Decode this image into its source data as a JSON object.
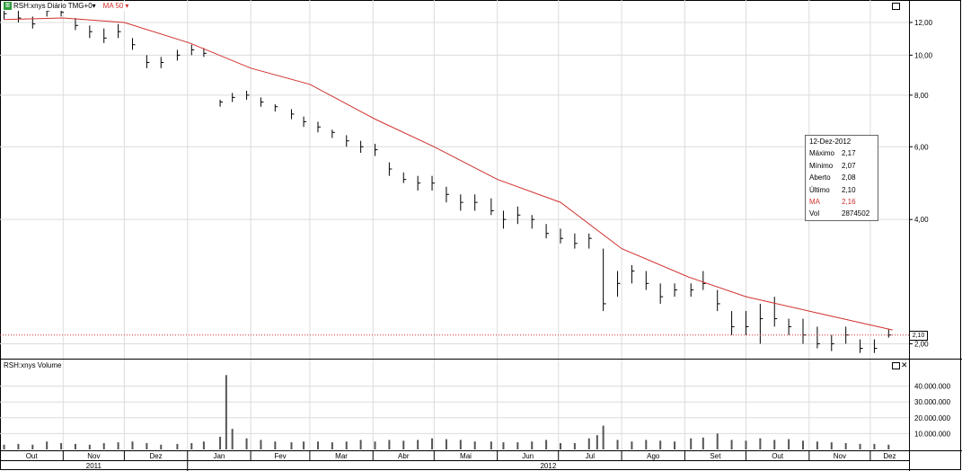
{
  "header": {
    "symbol_label": "RSH:xnys Diário TMG+0",
    "ma_label": "MA 50",
    "ma_arrow": "▾",
    "dropdown_arrow": "▾",
    "icon": "chart-icon"
  },
  "volume_panel": {
    "title": "RSH:xnys Volume"
  },
  "tooltip": {
    "date": "12-Dez-2012",
    "rows": [
      {
        "label": "Máximo",
        "value": "2,17"
      },
      {
        "label": "Mínimo",
        "value": "2,07"
      },
      {
        "label": "Aberto",
        "value": "2,08"
      },
      {
        "label": "Último",
        "value": "2,10"
      },
      {
        "label": "MA",
        "value": "2,16"
      },
      {
        "label": "Vol",
        "value": "2874502"
      }
    ]
  },
  "last_price_label": "2,10",
  "colors": {
    "ma_line": "#d0312d",
    "candle": "#000000",
    "volume": "#555555",
    "grid": "#dcdcdc",
    "last_line": "#d0312d"
  },
  "chart_data": [
    {
      "type": "candlestick-line",
      "title": "RSH:xnys Diário TMG+0",
      "y_scale": "log",
      "ylim": [
        1.85,
        13.6
      ],
      "y_ticks": [
        "2,00",
        "4,00",
        "6,00",
        "8,00",
        "10,00",
        "12,00"
      ],
      "y_tick_values": [
        2,
        4,
        6,
        8,
        10,
        12
      ],
      "x_month_labels": [
        "Out",
        "Nov",
        "Dez",
        "Jan",
        "Fev",
        "Mar",
        "Abr",
        "Mai",
        "Jun",
        "Jul",
        "Ago",
        "Set",
        "Out",
        "Nov",
        "Dez"
      ],
      "x_year_labels": [
        "2011",
        "2012"
      ],
      "x_range": [
        "2011-10-01",
        "2012-12-20"
      ],
      "price_series": {
        "name": "RSH:xnys",
        "dates": [
          "2011-10-03",
          "2011-10-10",
          "2011-10-17",
          "2011-10-24",
          "2011-10-31",
          "2011-11-07",
          "2011-11-14",
          "2011-11-21",
          "2011-11-28",
          "2011-12-05",
          "2011-12-12",
          "2011-12-19",
          "2011-12-27",
          "2012-01-03",
          "2012-01-09",
          "2012-01-17",
          "2012-01-23",
          "2012-01-30",
          "2012-02-06",
          "2012-02-13",
          "2012-02-21",
          "2012-02-27",
          "2012-03-05",
          "2012-03-12",
          "2012-03-19",
          "2012-03-26",
          "2012-04-02",
          "2012-04-09",
          "2012-04-16",
          "2012-04-23",
          "2012-04-30",
          "2012-05-07",
          "2012-05-14",
          "2012-05-21",
          "2012-05-29",
          "2012-06-04",
          "2012-06-11",
          "2012-06-18",
          "2012-06-25",
          "2012-07-02",
          "2012-07-09",
          "2012-07-16",
          "2012-07-23",
          "2012-07-30",
          "2012-08-06",
          "2012-08-13",
          "2012-08-20",
          "2012-08-27",
          "2012-09-04",
          "2012-09-10",
          "2012-09-17",
          "2012-09-24",
          "2012-10-01",
          "2012-10-08",
          "2012-10-15",
          "2012-10-22",
          "2012-10-29",
          "2012-11-05",
          "2012-11-12",
          "2012-11-19",
          "2012-11-26",
          "2012-12-03",
          "2012-12-10"
        ],
        "close": [
          12.6,
          12.3,
          11.9,
          12.8,
          12.7,
          11.8,
          11.4,
          11.0,
          11.4,
          10.6,
          9.6,
          9.6,
          10.0,
          10.3,
          10.1,
          7.7,
          7.9,
          8.0,
          7.7,
          7.5,
          7.2,
          6.9,
          6.7,
          6.5,
          6.2,
          6.0,
          5.9,
          5.3,
          5.0,
          4.9,
          4.9,
          4.6,
          4.4,
          4.4,
          4.2,
          4.0,
          4.1,
          4.0,
          3.7,
          3.6,
          3.5,
          3.6,
          2.5,
          2.8,
          3.0,
          2.8,
          2.6,
          2.7,
          2.7,
          2.8,
          2.5,
          2.2,
          2.2,
          2.3,
          2.3,
          2.2,
          2.1,
          2.0,
          2.0,
          2.1,
          1.95,
          1.95,
          2.1
        ],
        "high": [
          12.9,
          12.8,
          12.4,
          13.2,
          13.1,
          12.3,
          11.8,
          11.6,
          11.9,
          11.0,
          10.0,
          9.9,
          10.3,
          10.6,
          10.4,
          7.8,
          8.1,
          8.2,
          7.9,
          7.6,
          7.4,
          7.1,
          6.9,
          6.6,
          6.4,
          6.2,
          6.1,
          5.5,
          5.2,
          5.1,
          5.1,
          4.8,
          4.6,
          4.6,
          4.5,
          4.2,
          4.3,
          4.1,
          3.9,
          3.8,
          3.7,
          3.7,
          3.4,
          3.0,
          3.1,
          3.0,
          2.8,
          2.8,
          2.8,
          3.0,
          2.7,
          2.4,
          2.4,
          2.5,
          2.6,
          2.3,
          2.3,
          2.2,
          2.1,
          2.2,
          2.05,
          2.05,
          2.17
        ],
        "low": [
          12.2,
          12.0,
          11.6,
          12.4,
          12.4,
          11.5,
          11.0,
          10.7,
          11.0,
          10.3,
          9.3,
          9.3,
          9.7,
          10.0,
          9.9,
          7.5,
          7.7,
          7.8,
          7.5,
          7.3,
          7.0,
          6.7,
          6.5,
          6.3,
          6.0,
          5.8,
          5.7,
          5.1,
          4.9,
          4.7,
          4.7,
          4.4,
          4.2,
          4.2,
          4.1,
          3.8,
          3.9,
          3.8,
          3.6,
          3.5,
          3.4,
          3.4,
          2.4,
          2.6,
          2.8,
          2.7,
          2.5,
          2.6,
          2.6,
          2.7,
          2.4,
          2.1,
          2.1,
          2.0,
          2.2,
          2.1,
          2.0,
          1.95,
          1.92,
          2.0,
          1.9,
          1.9,
          2.07
        ]
      },
      "ma_series": {
        "name": "MA 50",
        "dates": [
          "2011-10-03",
          "2011-11-01",
          "2011-12-01",
          "2012-01-02",
          "2012-02-01",
          "2012-03-01",
          "2012-04-02",
          "2012-05-01",
          "2012-06-01",
          "2012-07-02",
          "2012-08-01",
          "2012-09-03",
          "2012-10-01",
          "2012-11-01",
          "2012-12-12"
        ],
        "values": [
          12.2,
          12.3,
          12.0,
          10.7,
          9.3,
          8.5,
          7.0,
          6.0,
          5.0,
          4.4,
          3.4,
          2.9,
          2.6,
          2.4,
          2.16
        ]
      },
      "last_price": 2.1
    },
    {
      "type": "bar",
      "title": "RSH:xnys Volume",
      "y_ticks": [
        "10.000.000",
        "20.000.000",
        "30.000.000",
        "40.000.000"
      ],
      "y_tick_values": [
        10000000,
        20000000,
        30000000,
        40000000
      ],
      "ylim": [
        0,
        50000000
      ],
      "dates": [
        "2011-10-03",
        "2011-10-10",
        "2011-10-17",
        "2011-10-24",
        "2011-10-31",
        "2011-11-07",
        "2011-11-14",
        "2011-11-21",
        "2011-11-28",
        "2011-12-05",
        "2011-12-12",
        "2011-12-19",
        "2011-12-27",
        "2012-01-03",
        "2012-01-09",
        "2012-01-17",
        "2012-01-20",
        "2012-01-23",
        "2012-01-30",
        "2012-02-06",
        "2012-02-13",
        "2012-02-21",
        "2012-02-27",
        "2012-03-05",
        "2012-03-12",
        "2012-03-19",
        "2012-03-26",
        "2012-04-02",
        "2012-04-09",
        "2012-04-16",
        "2012-04-23",
        "2012-04-30",
        "2012-05-07",
        "2012-05-14",
        "2012-05-21",
        "2012-05-29",
        "2012-06-04",
        "2012-06-11",
        "2012-06-18",
        "2012-06-25",
        "2012-07-02",
        "2012-07-09",
        "2012-07-16",
        "2012-07-20",
        "2012-07-23",
        "2012-07-30",
        "2012-08-06",
        "2012-08-13",
        "2012-08-20",
        "2012-08-27",
        "2012-09-04",
        "2012-09-10",
        "2012-09-17",
        "2012-09-24",
        "2012-10-01",
        "2012-10-08",
        "2012-10-15",
        "2012-10-22",
        "2012-10-29",
        "2012-11-05",
        "2012-11-12",
        "2012-11-19",
        "2012-11-26",
        "2012-12-03",
        "2012-12-10"
      ],
      "values": [
        3000000,
        3500000,
        3000000,
        5000000,
        4000000,
        3500000,
        3000000,
        4000000,
        4500000,
        5000000,
        4000000,
        3000000,
        3500000,
        4000000,
        5000000,
        8000000,
        47000000,
        13000000,
        7000000,
        6000000,
        5000000,
        4500000,
        5000000,
        5000000,
        4500000,
        5000000,
        6000000,
        5000000,
        6000000,
        5500000,
        6000000,
        7000000,
        6500000,
        6000000,
        5000000,
        5000000,
        4500000,
        4500000,
        5000000,
        6000000,
        4000000,
        4000000,
        7000000,
        9000000,
        15000000,
        6000000,
        5000000,
        6000000,
        5500000,
        5000000,
        7000000,
        7500000,
        10000000,
        6000000,
        5500000,
        7000000,
        6000000,
        6500000,
        5500000,
        5000000,
        4500000,
        4000000,
        3500000,
        3500000,
        3000000
      ]
    }
  ]
}
